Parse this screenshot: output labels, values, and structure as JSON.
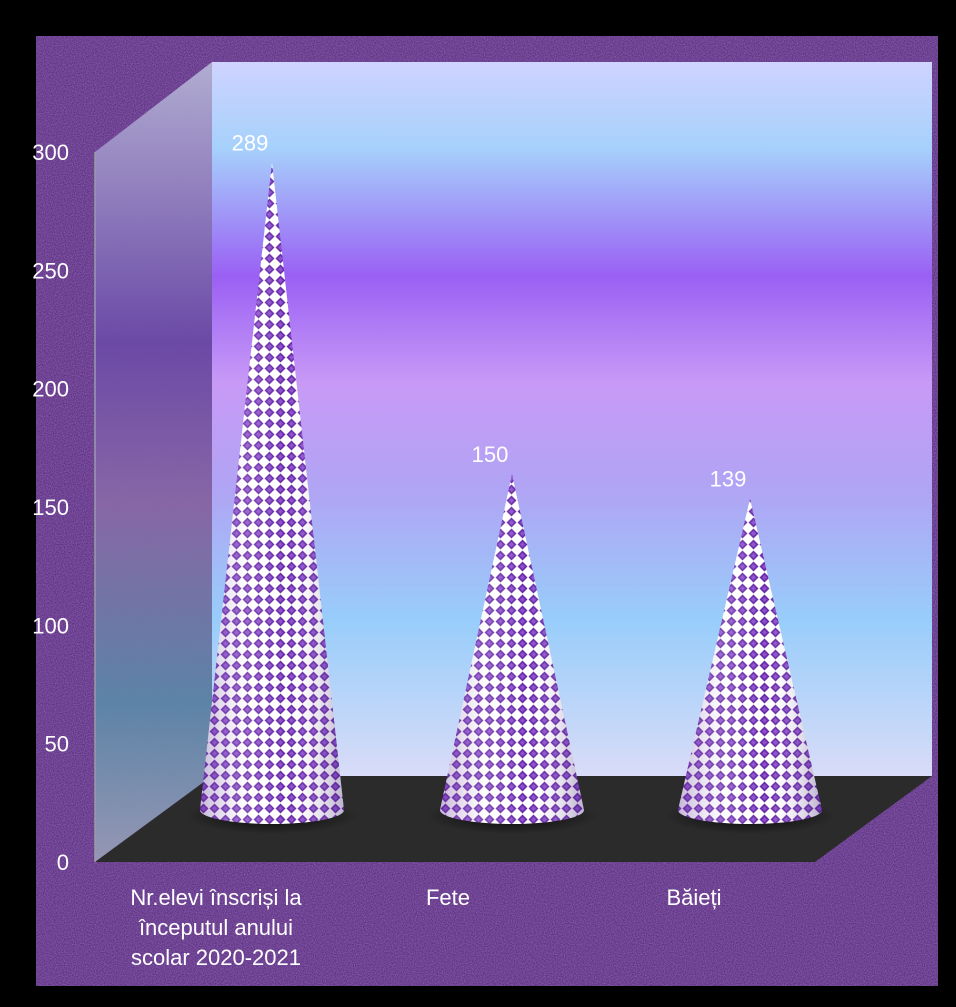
{
  "chart_data": {
    "type": "bar",
    "categories": [
      [
        "Nr.elevi înscriși  la",
        "începutul  anului",
        "scolar 2020-2021"
      ],
      [
        "Fete"
      ],
      [
        "Băieți"
      ]
    ],
    "values": [
      289,
      150,
      139
    ],
    "data_labels": [
      "289",
      "150",
      "139"
    ],
    "y_ticks": [
      "0",
      "50",
      "100",
      "150",
      "200",
      "250",
      "300"
    ],
    "ylim": [
      0,
      300
    ],
    "grid": false,
    "legend": "none",
    "colors": {
      "frame_background": "#000000",
      "outer_background": "#4a1f70",
      "wall_light": "#c9d6ff",
      "wall_purple": "#a070f5",
      "wall_blue": "#96ccfa",
      "floor": "#2a2a2a",
      "cone_light": "#ffffff",
      "cone_pattern": "#6a2aa8",
      "text": "#ffffff"
    }
  }
}
